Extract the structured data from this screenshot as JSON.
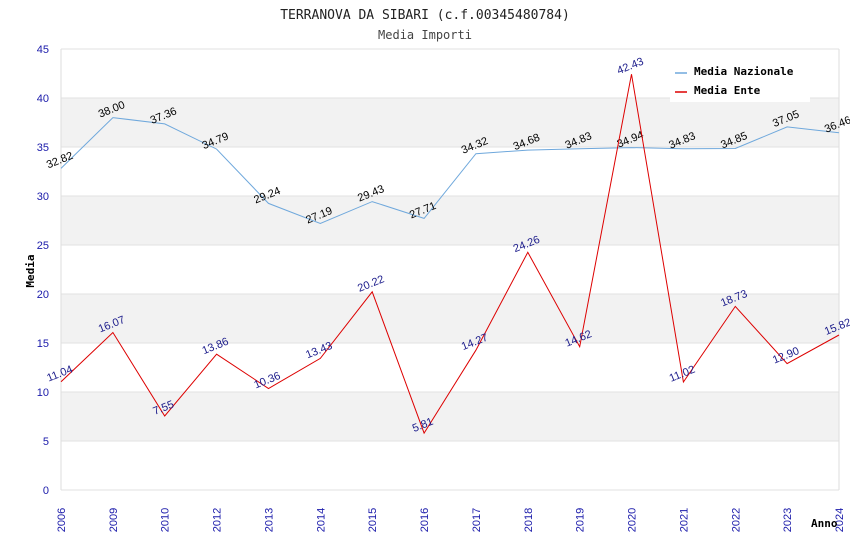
{
  "chart_data": {
    "type": "line",
    "title": "TERRANOVA DA SIBARI (c.f.00345480784)",
    "subtitle": "Media Importi",
    "xlabel": "Anno",
    "ylabel": "Media",
    "ylim": [
      0,
      45
    ],
    "yticks": [
      0,
      5,
      10,
      15,
      20,
      25,
      30,
      35,
      40,
      45
    ],
    "categories": [
      "2006",
      "2009",
      "2010",
      "2012",
      "2013",
      "2014",
      "2015",
      "2016",
      "2017",
      "2018",
      "2019",
      "2020",
      "2021",
      "2022",
      "2023",
      "2024"
    ],
    "series": [
      {
        "name": "Media Nazionale",
        "color": "#6fa8dc",
        "label_color": "#000000",
        "values": [
          32.82,
          38.0,
          37.36,
          34.79,
          29.24,
          27.19,
          29.43,
          27.71,
          34.32,
          34.68,
          34.83,
          34.94,
          34.83,
          34.85,
          37.05,
          36.46
        ],
        "labels": [
          "32.82",
          "38.00",
          "37.36",
          "34.79",
          "29.24",
          "27.19",
          "29.43",
          "27.71",
          "34.32",
          "34.68",
          "34.83",
          "34.94",
          "34.83",
          "34.85",
          "37.05",
          "36.46"
        ]
      },
      {
        "name": "Media Ente",
        "color": "#dd0000",
        "label_color": "#1a1a8a",
        "values": [
          11.04,
          16.07,
          7.55,
          13.86,
          10.36,
          13.43,
          20.22,
          5.81,
          14.27,
          24.26,
          14.62,
          42.43,
          11.02,
          18.73,
          12.9,
          15.82
        ],
        "labels": [
          "11.04",
          "16.07",
          "7.55",
          "13.86",
          "10.36",
          "13.43",
          "20.22",
          "5.81",
          "14.27",
          "24.26",
          "14.62",
          "42.43",
          "11.02",
          "18.73",
          "12.90",
          "15.82"
        ]
      }
    ],
    "grid": true,
    "legend": "top-right"
  }
}
